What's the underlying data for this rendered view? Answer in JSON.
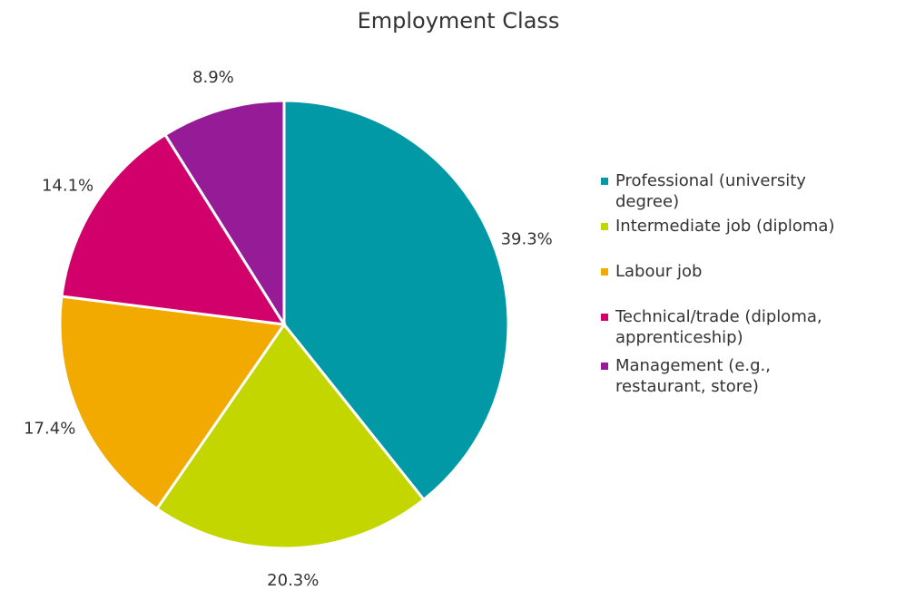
{
  "chart_data": {
    "type": "pie",
    "title": "Employment Class",
    "categories": [
      "Professional (university degree)",
      "Intermediate job (diploma)",
      "Labour job",
      "Technical/trade (diploma, apprenticeship)",
      "Management (e.g., restaurant, store)"
    ],
    "values": [
      39.3,
      20.3,
      17.4,
      14.1,
      8.9
    ],
    "value_labels": [
      "39.3%",
      "20.3%",
      "17.4%",
      "14.1%",
      "8.9%"
    ],
    "colors": [
      "#0099a5",
      "#c3d600",
      "#f2a900",
      "#d1006b",
      "#951c96"
    ],
    "legend": "right"
  }
}
